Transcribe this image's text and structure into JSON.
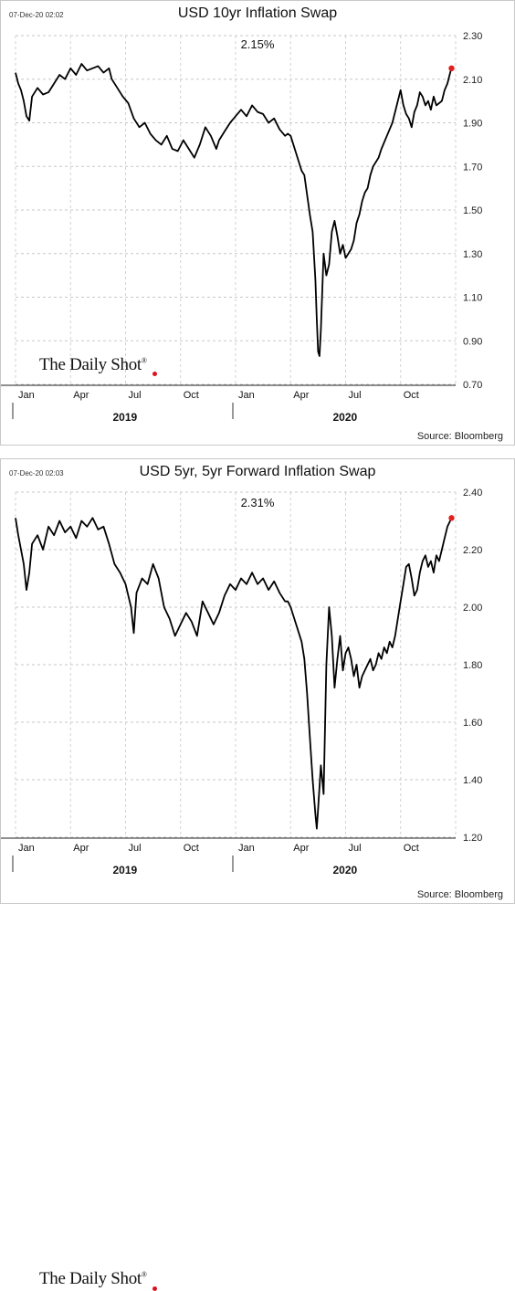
{
  "chart_data": [
    {
      "type": "line",
      "timestamp": "07-Dec-20 02:02",
      "title": "USD 10yr Inflation Swap",
      "current_value_label": "2.15%",
      "ylim": [
        0.7,
        2.3
      ],
      "yticks": [
        "2.30",
        "2.10",
        "1.90",
        "1.70",
        "1.50",
        "1.30",
        "1.10",
        "0.90",
        "0.70"
      ],
      "xticks": [
        "Jan",
        "Apr",
        "Jul",
        "Oct",
        "Jan",
        "Apr",
        "Jul",
        "Oct"
      ],
      "years": [
        "2019",
        "2020"
      ],
      "source": "Source: Bloomberg",
      "logo": "The Daily Shot",
      "grid": true,
      "series": [
        {
          "line_color": "#000000",
          "end_marker_color": "#e0201c",
          "points": [
            [
              0.0,
              2.13
            ],
            [
              0.01,
              2.08
            ],
            [
              0.02,
              2.05
            ],
            [
              0.03,
              2.0
            ],
            [
              0.04,
              1.93
            ],
            [
              0.05,
              1.91
            ],
            [
              0.06,
              2.02
            ],
            [
              0.08,
              2.06
            ],
            [
              0.1,
              2.03
            ],
            [
              0.12,
              2.04
            ],
            [
              0.14,
              2.08
            ],
            [
              0.16,
              2.12
            ],
            [
              0.18,
              2.1
            ],
            [
              0.2,
              2.15
            ],
            [
              0.22,
              2.12
            ],
            [
              0.24,
              2.17
            ],
            [
              0.26,
              2.14
            ],
            [
              0.28,
              2.15
            ],
            [
              0.3,
              2.16
            ],
            [
              0.32,
              2.13
            ],
            [
              0.34,
              2.15
            ],
            [
              0.35,
              2.1
            ],
            [
              0.37,
              2.06
            ],
            [
              0.39,
              2.02
            ],
            [
              0.41,
              1.99
            ],
            [
              0.43,
              1.92
            ],
            [
              0.45,
              1.88
            ],
            [
              0.47,
              1.9
            ],
            [
              0.49,
              1.85
            ],
            [
              0.51,
              1.82
            ],
            [
              0.53,
              1.8
            ],
            [
              0.55,
              1.84
            ],
            [
              0.57,
              1.78
            ],
            [
              0.59,
              1.77
            ],
            [
              0.61,
              1.82
            ],
            [
              0.63,
              1.78
            ],
            [
              0.65,
              1.74
            ],
            [
              0.67,
              1.8
            ],
            [
              0.69,
              1.88
            ],
            [
              0.71,
              1.84
            ],
            [
              0.73,
              1.78
            ],
            [
              0.74,
              1.82
            ],
            [
              0.76,
              1.86
            ],
            [
              0.78,
              1.9
            ],
            [
              0.8,
              1.93
            ],
            [
              0.82,
              1.96
            ],
            [
              0.84,
              1.93
            ],
            [
              0.86,
              1.98
            ],
            [
              0.88,
              1.95
            ],
            [
              0.9,
              1.94
            ],
            [
              0.92,
              1.9
            ],
            [
              0.94,
              1.92
            ],
            [
              0.96,
              1.87
            ],
            [
              0.98,
              1.84
            ],
            [
              0.99,
              1.85
            ],
            [
              1.0,
              1.84
            ],
            [
              1.02,
              1.76
            ],
            [
              1.04,
              1.68
            ],
            [
              1.05,
              1.66
            ],
            [
              1.06,
              1.57
            ],
            [
              1.07,
              1.48
            ],
            [
              1.08,
              1.4
            ],
            [
              1.09,
              1.18
            ],
            [
              1.095,
              1.0
            ],
            [
              1.1,
              0.85
            ],
            [
              1.105,
              0.83
            ],
            [
              1.11,
              0.95
            ],
            [
              1.12,
              1.3
            ],
            [
              1.13,
              1.2
            ],
            [
              1.14,
              1.25
            ],
            [
              1.15,
              1.4
            ],
            [
              1.16,
              1.45
            ],
            [
              1.17,
              1.38
            ],
            [
              1.18,
              1.3
            ],
            [
              1.19,
              1.34
            ],
            [
              1.2,
              1.28
            ],
            [
              1.21,
              1.3
            ],
            [
              1.22,
              1.32
            ],
            [
              1.23,
              1.36
            ],
            [
              1.24,
              1.44
            ],
            [
              1.25,
              1.48
            ],
            [
              1.26,
              1.54
            ],
            [
              1.27,
              1.58
            ],
            [
              1.28,
              1.6
            ],
            [
              1.29,
              1.66
            ],
            [
              1.3,
              1.7
            ],
            [
              1.31,
              1.72
            ],
            [
              1.32,
              1.74
            ],
            [
              1.33,
              1.78
            ],
            [
              1.34,
              1.81
            ],
            [
              1.35,
              1.84
            ],
            [
              1.36,
              1.87
            ],
            [
              1.37,
              1.9
            ],
            [
              1.38,
              1.95
            ],
            [
              1.39,
              2.0
            ],
            [
              1.4,
              2.05
            ],
            [
              1.41,
              1.98
            ],
            [
              1.42,
              1.94
            ],
            [
              1.43,
              1.92
            ],
            [
              1.44,
              1.88
            ],
            [
              1.45,
              1.95
            ],
            [
              1.46,
              1.98
            ],
            [
              1.47,
              2.04
            ],
            [
              1.48,
              2.02
            ],
            [
              1.49,
              1.98
            ],
            [
              1.5,
              2.0
            ],
            [
              1.51,
              1.96
            ],
            [
              1.52,
              2.02
            ],
            [
              1.53,
              1.98
            ],
            [
              1.54,
              1.99
            ],
            [
              1.55,
              2.0
            ],
            [
              1.56,
              2.05
            ],
            [
              1.57,
              2.08
            ],
            [
              1.58,
              2.13
            ],
            [
              1.585,
              2.15
            ]
          ]
        }
      ]
    },
    {
      "type": "line",
      "timestamp": "07-Dec-20 02:03",
      "title": "USD 5yr, 5yr Forward Inflation Swap",
      "current_value_label": "2.31%",
      "ylim": [
        1.2,
        2.4
      ],
      "yticks": [
        "2.40",
        "2.20",
        "2.00",
        "1.80",
        "1.60",
        "1.40",
        "1.20"
      ],
      "xticks": [
        "Jan",
        "Apr",
        "Jul",
        "Oct",
        "Jan",
        "Apr",
        "Jul",
        "Oct"
      ],
      "years": [
        "2019",
        "2020"
      ],
      "source": "Source: Bloomberg",
      "logo": "The Daily Shot",
      "grid": true,
      "series": [
        {
          "line_color": "#000000",
          "end_marker_color": "#e0201c",
          "points": [
            [
              0.0,
              2.31
            ],
            [
              0.01,
              2.25
            ],
            [
              0.02,
              2.2
            ],
            [
              0.03,
              2.15
            ],
            [
              0.04,
              2.06
            ],
            [
              0.05,
              2.12
            ],
            [
              0.06,
              2.22
            ],
            [
              0.08,
              2.25
            ],
            [
              0.1,
              2.2
            ],
            [
              0.12,
              2.28
            ],
            [
              0.14,
              2.25
            ],
            [
              0.16,
              2.3
            ],
            [
              0.18,
              2.26
            ],
            [
              0.2,
              2.28
            ],
            [
              0.22,
              2.24
            ],
            [
              0.24,
              2.3
            ],
            [
              0.26,
              2.28
            ],
            [
              0.28,
              2.31
            ],
            [
              0.3,
              2.27
            ],
            [
              0.32,
              2.28
            ],
            [
              0.34,
              2.22
            ],
            [
              0.36,
              2.15
            ],
            [
              0.38,
              2.12
            ],
            [
              0.4,
              2.08
            ],
            [
              0.42,
              2.0
            ],
            [
              0.43,
              1.91
            ],
            [
              0.44,
              2.05
            ],
            [
              0.46,
              2.1
            ],
            [
              0.48,
              2.08
            ],
            [
              0.5,
              2.15
            ],
            [
              0.52,
              2.1
            ],
            [
              0.54,
              2.0
            ],
            [
              0.56,
              1.96
            ],
            [
              0.58,
              1.9
            ],
            [
              0.6,
              1.94
            ],
            [
              0.62,
              1.98
            ],
            [
              0.64,
              1.95
            ],
            [
              0.66,
              1.9
            ],
            [
              0.68,
              2.02
            ],
            [
              0.7,
              1.98
            ],
            [
              0.72,
              1.94
            ],
            [
              0.74,
              1.98
            ],
            [
              0.76,
              2.04
            ],
            [
              0.78,
              2.08
            ],
            [
              0.8,
              2.06
            ],
            [
              0.82,
              2.1
            ],
            [
              0.84,
              2.08
            ],
            [
              0.86,
              2.12
            ],
            [
              0.88,
              2.08
            ],
            [
              0.9,
              2.1
            ],
            [
              0.92,
              2.06
            ],
            [
              0.94,
              2.09
            ],
            [
              0.96,
              2.05
            ],
            [
              0.98,
              2.02
            ],
            [
              0.99,
              2.02
            ],
            [
              1.0,
              2.0
            ],
            [
              1.02,
              1.94
            ],
            [
              1.04,
              1.88
            ],
            [
              1.05,
              1.82
            ],
            [
              1.06,
              1.7
            ],
            [
              1.07,
              1.55
            ],
            [
              1.08,
              1.4
            ],
            [
              1.09,
              1.28
            ],
            [
              1.095,
              1.23
            ],
            [
              1.1,
              1.3
            ],
            [
              1.11,
              1.45
            ],
            [
              1.12,
              1.35
            ],
            [
              1.13,
              1.8
            ],
            [
              1.14,
              2.0
            ],
            [
              1.15,
              1.9
            ],
            [
              1.16,
              1.72
            ],
            [
              1.17,
              1.82
            ],
            [
              1.18,
              1.9
            ],
            [
              1.19,
              1.78
            ],
            [
              1.2,
              1.84
            ],
            [
              1.21,
              1.86
            ],
            [
              1.22,
              1.82
            ],
            [
              1.23,
              1.76
            ],
            [
              1.24,
              1.8
            ],
            [
              1.25,
              1.72
            ],
            [
              1.26,
              1.76
            ],
            [
              1.27,
              1.78
            ],
            [
              1.28,
              1.8
            ],
            [
              1.29,
              1.82
            ],
            [
              1.3,
              1.78
            ],
            [
              1.31,
              1.8
            ],
            [
              1.32,
              1.84
            ],
            [
              1.33,
              1.82
            ],
            [
              1.34,
              1.86
            ],
            [
              1.35,
              1.84
            ],
            [
              1.36,
              1.88
            ],
            [
              1.37,
              1.86
            ],
            [
              1.38,
              1.9
            ],
            [
              1.39,
              1.96
            ],
            [
              1.4,
              2.02
            ],
            [
              1.41,
              2.08
            ],
            [
              1.42,
              2.14
            ],
            [
              1.43,
              2.15
            ],
            [
              1.44,
              2.1
            ],
            [
              1.45,
              2.04
            ],
            [
              1.46,
              2.06
            ],
            [
              1.47,
              2.12
            ],
            [
              1.48,
              2.16
            ],
            [
              1.49,
              2.18
            ],
            [
              1.5,
              2.14
            ],
            [
              1.51,
              2.16
            ],
            [
              1.52,
              2.12
            ],
            [
              1.53,
              2.18
            ],
            [
              1.54,
              2.16
            ],
            [
              1.55,
              2.2
            ],
            [
              1.56,
              2.24
            ],
            [
              1.57,
              2.28
            ],
            [
              1.58,
              2.3
            ],
            [
              1.585,
              2.31
            ]
          ]
        }
      ]
    }
  ]
}
